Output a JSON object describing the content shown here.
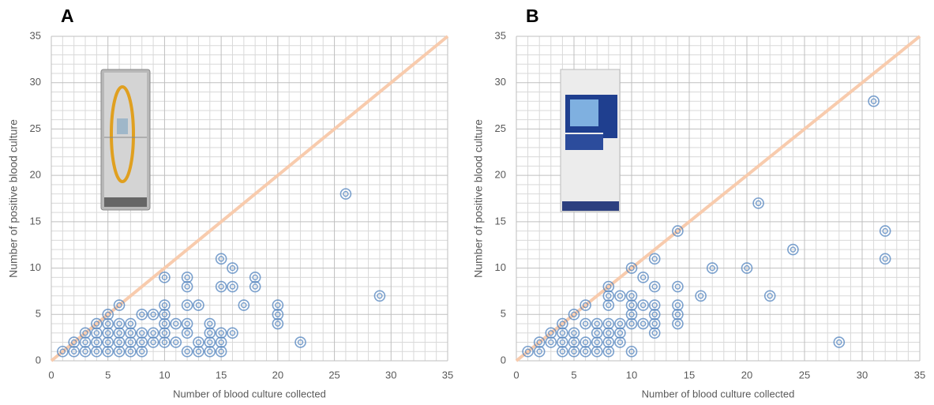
{
  "chart_data": [
    {
      "type": "scatter",
      "panel_label": "A",
      "xlabel": "Number of blood culture collected",
      "ylabel": "Number of positive blood culture",
      "xlim": [
        0,
        35
      ],
      "ylim": [
        0,
        35
      ],
      "xticks": [
        0,
        5,
        10,
        15,
        20,
        25,
        30,
        35
      ],
      "yticks": [
        0,
        5,
        10,
        15,
        20,
        25,
        30,
        35
      ],
      "grid": true,
      "color": "#4f81bd",
      "identity_line_color": "#f8cbad",
      "x": [
        1,
        2,
        2,
        3,
        3,
        3,
        4,
        4,
        4,
        4,
        5,
        5,
        5,
        5,
        5,
        6,
        6,
        6,
        6,
        6,
        7,
        7,
        7,
        7,
        8,
        8,
        8,
        8,
        9,
        9,
        9,
        10,
        10,
        10,
        10,
        10,
        10,
        11,
        11,
        12,
        12,
        12,
        12,
        12,
        12,
        13,
        13,
        13,
        14,
        14,
        14,
        14,
        15,
        15,
        15,
        15,
        15,
        16,
        16,
        16,
        17,
        18,
        18,
        20,
        20,
        20,
        22,
        26,
        29
      ],
      "values": [
        1,
        1,
        2,
        1,
        2,
        3,
        1,
        2,
        3,
        4,
        1,
        2,
        3,
        4,
        5,
        1,
        2,
        3,
        4,
        6,
        1,
        2,
        3,
        4,
        1,
        2,
        3,
        5,
        2,
        3,
        5,
        2,
        3,
        4,
        5,
        6,
        9,
        2,
        4,
        1,
        3,
        4,
        6,
        8,
        9,
        1,
        2,
        6,
        1,
        2,
        3,
        4,
        1,
        2,
        3,
        8,
        11,
        3,
        8,
        10,
        6,
        8,
        9,
        4,
        5,
        6,
        2,
        18,
        7
      ]
    },
    {
      "type": "scatter",
      "panel_label": "B",
      "xlabel": "Number of blood culture collected",
      "ylabel": "Number of positive blood culture",
      "xlim": [
        0,
        35
      ],
      "ylim": [
        0,
        35
      ],
      "xticks": [
        0,
        5,
        10,
        15,
        20,
        25,
        30,
        35
      ],
      "yticks": [
        0,
        5,
        10,
        15,
        20,
        25,
        30,
        35
      ],
      "grid": true,
      "color": "#4f81bd",
      "identity_line_color": "#f8cbad",
      "x": [
        1,
        2,
        2,
        3,
        3,
        4,
        4,
        4,
        4,
        5,
        5,
        5,
        5,
        6,
        6,
        6,
        6,
        7,
        7,
        7,
        7,
        8,
        8,
        8,
        8,
        8,
        8,
        8,
        9,
        9,
        9,
        9,
        10,
        10,
        10,
        10,
        10,
        10,
        11,
        11,
        11,
        12,
        12,
        12,
        12,
        12,
        12,
        14,
        14,
        14,
        14,
        14,
        16,
        17,
        20,
        21,
        22,
        24,
        28,
        31,
        32,
        32
      ],
      "values": [
        1,
        1,
        2,
        2,
        3,
        1,
        2,
        3,
        4,
        1,
        2,
        3,
        5,
        1,
        2,
        4,
        6,
        1,
        2,
        3,
        4,
        1,
        2,
        3,
        4,
        6,
        7,
        8,
        2,
        3,
        4,
        7,
        1,
        4,
        5,
        6,
        7,
        10,
        4,
        6,
        9,
        3,
        4,
        5,
        6,
        8,
        11,
        4,
        5,
        6,
        8,
        14,
        7,
        10,
        10,
        17,
        7,
        12,
        2,
        28,
        11,
        14
      ]
    }
  ]
}
